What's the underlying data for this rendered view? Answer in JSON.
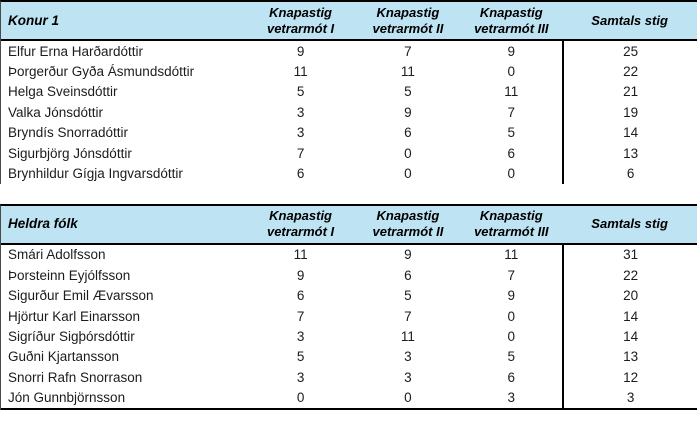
{
  "colors": {
    "header_background": "#bee3f2",
    "border": "#000000",
    "body_text": "#1c1c1c",
    "page_background": "#ffffff"
  },
  "tables": [
    {
      "group": "Konur 1",
      "columns": [
        {
          "line1": "Knapastig",
          "line2": "vetrarmót I"
        },
        {
          "line1": "Knapastig",
          "line2": "vetrarmót II"
        },
        {
          "line1": "Knapastig",
          "line2": "vetrarmót III"
        },
        {
          "line1": "Samtals stig",
          "line2": ""
        }
      ],
      "rows": [
        {
          "name": "Elfur Erna Harðardóttir",
          "values": [
            9,
            7,
            9,
            25
          ]
        },
        {
          "name": "Þorgerður Gyða Ásmundsdóttir",
          "values": [
            11,
            11,
            0,
            22
          ]
        },
        {
          "name": "Helga Sveinsdóttir",
          "values": [
            5,
            5,
            11,
            21
          ]
        },
        {
          "name": "Valka Jónsdóttir",
          "values": [
            3,
            9,
            7,
            19
          ]
        },
        {
          "name": "Bryndís Snorradóttir",
          "values": [
            3,
            6,
            5,
            14
          ]
        },
        {
          "name": "Sigurbjörg Jónsdóttir",
          "values": [
            7,
            0,
            6,
            13
          ]
        },
        {
          "name": "Brynhildur Gígja Ingvarsdóttir",
          "values": [
            6,
            0,
            0,
            6
          ]
        }
      ]
    },
    {
      "group": "Heldra fólk",
      "columns": [
        {
          "line1": "Knapastig",
          "line2": "vetrarmót I"
        },
        {
          "line1": "Knapastig",
          "line2": "vetrarmót II"
        },
        {
          "line1": "Knapastig",
          "line2": "vetrarmót III"
        },
        {
          "line1": "Samtals stig",
          "line2": ""
        }
      ],
      "rows": [
        {
          "name": "Smári Adolfsson",
          "values": [
            11,
            9,
            11,
            31
          ]
        },
        {
          "name": "Þorsteinn Eyjólfsson",
          "values": [
            9,
            6,
            7,
            22
          ]
        },
        {
          "name": "Sigurður Emil Ævarsson",
          "values": [
            6,
            5,
            9,
            20
          ]
        },
        {
          "name": "Hjörtur Karl Einarsson",
          "values": [
            7,
            7,
            0,
            14
          ]
        },
        {
          "name": "Sigríður Sigþórsdóttir",
          "values": [
            3,
            11,
            0,
            14
          ]
        },
        {
          "name": "Guðni Kjartansson",
          "values": [
            5,
            3,
            5,
            13
          ]
        },
        {
          "name": "Snorri Rafn Snorrason",
          "values": [
            3,
            3,
            6,
            12
          ]
        },
        {
          "name": "Jón Gunnbjörnsson",
          "values": [
            0,
            0,
            3,
            3
          ]
        }
      ]
    }
  ]
}
